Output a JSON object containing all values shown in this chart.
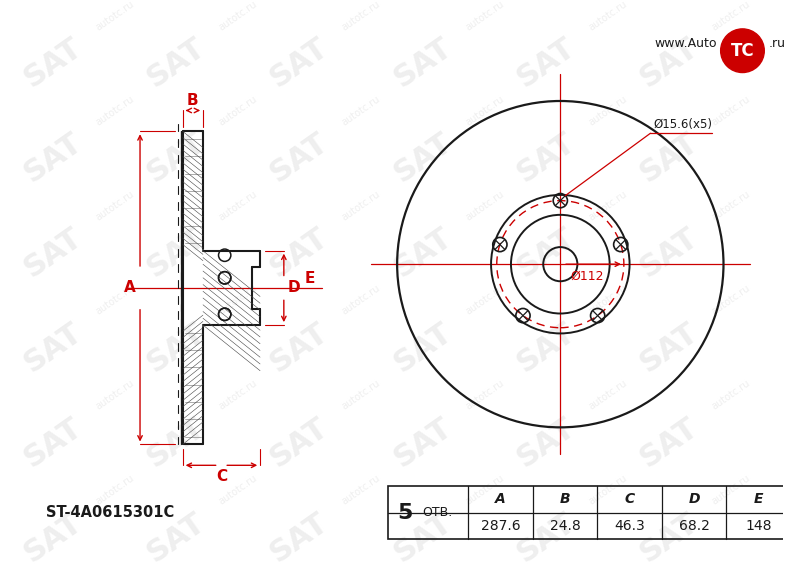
{
  "bg_color": "#ffffff",
  "line_color": "#1a1a1a",
  "dim_color": "#cc0000",
  "hatch_color": "#333333",
  "watermark_color": "#e8e8e8",
  "part_number": "ST-4A0615301C",
  "holes": 5,
  "label_otv": "ОТВ.",
  "dim_A": "287.6",
  "dim_B": "24.8",
  "dim_C": "46.3",
  "dim_D": "68.2",
  "dim_E": "148",
  "label_A": "A",
  "label_B": "B",
  "label_C": "C",
  "label_D": "D",
  "label_E": "E",
  "dia_112": "Ø112",
  "dia_156": "Ø15.6(x5)",
  "website_pre": "www.Auto",
  "website_post": ".ru",
  "logo_text": "TC"
}
